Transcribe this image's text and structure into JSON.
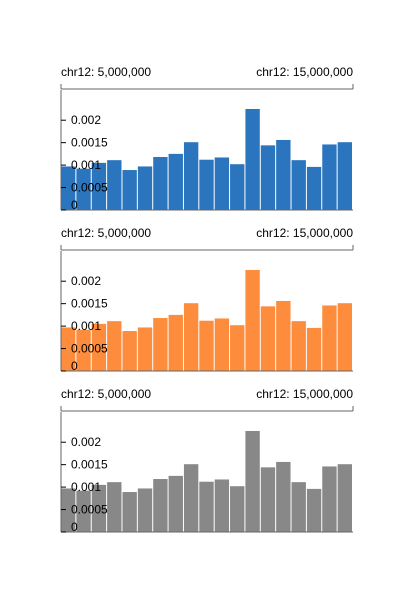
{
  "chart_data": [
    {
      "type": "bar",
      "color": "#2b75be",
      "axis": {
        "left_label": "chr12: 5,000,000",
        "right_label": "chr12: 15,000,000"
      },
      "y_ticks": [
        "0",
        "0.0005",
        "0.001",
        "0.0015",
        "0.002"
      ],
      "y_tick_values": [
        0,
        0.0005,
        0.001,
        0.0015,
        0.002
      ],
      "ylim": [
        0,
        0.00245
      ],
      "values": [
        0.00097,
        0.00092,
        0.00105,
        0.00111,
        0.00089,
        0.00097,
        0.00118,
        0.00125,
        0.00151,
        0.00112,
        0.00117,
        0.00102,
        0.00225,
        0.00144,
        0.00156,
        0.00111,
        0.00096,
        0.00146,
        0.00151
      ]
    },
    {
      "type": "bar",
      "color": "#fd8d3c",
      "axis": {
        "left_label": "chr12: 5,000,000",
        "right_label": "chr12: 15,000,000"
      },
      "y_ticks": [
        "0",
        "0.0005",
        "0.001",
        "0.0015",
        "0.002"
      ],
      "y_tick_values": [
        0,
        0.0005,
        0.001,
        0.0015,
        0.002
      ],
      "ylim": [
        0,
        0.00245
      ],
      "values": [
        0.00097,
        0.00092,
        0.00105,
        0.00111,
        0.00089,
        0.00097,
        0.00118,
        0.00125,
        0.00151,
        0.00112,
        0.00117,
        0.00102,
        0.00225,
        0.00144,
        0.00156,
        0.00111,
        0.00096,
        0.00146,
        0.00151
      ]
    },
    {
      "type": "bar",
      "color": "#888888",
      "axis": {
        "left_label": "chr12: 5,000,000",
        "right_label": "chr12: 15,000,000"
      },
      "y_ticks": [
        "0",
        "0.0005",
        "0.001",
        "0.0015",
        "0.002"
      ],
      "y_tick_values": [
        0,
        0.0005,
        0.001,
        0.0015,
        0.002
      ],
      "ylim": [
        0,
        0.00245
      ],
      "values": [
        0.00097,
        0.00092,
        0.00105,
        0.00111,
        0.00089,
        0.00097,
        0.00118,
        0.00125,
        0.00151,
        0.00112,
        0.00117,
        0.00102,
        0.00225,
        0.00144,
        0.00156,
        0.00111,
        0.00096,
        0.00146,
        0.00151
      ]
    }
  ]
}
